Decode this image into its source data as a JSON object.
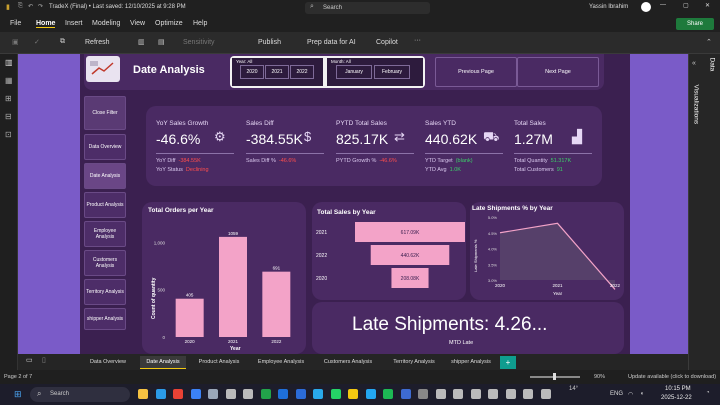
{
  "window": {
    "title": "TradeX (Final) • Last saved: 12/10/2025 at 9:28 PM",
    "search": "Search",
    "user": "Yassin Ibrahim"
  },
  "menu": {
    "items": [
      "File",
      "Home",
      "Insert",
      "Modeling",
      "View",
      "Optimize",
      "Help"
    ],
    "share": "Share"
  },
  "ribbon": {
    "refresh": "Refresh",
    "sensitivity": "Sensitivity",
    "publish": "Publish",
    "prep": "Prep data for AI",
    "copilot": "Copilot"
  },
  "report": {
    "title": "Date Analysis",
    "slicers": {
      "year_label": "Year: All",
      "years": [
        "2020",
        "2021",
        "2022"
      ],
      "month_label": "Month: All",
      "months": [
        "January",
        "February"
      ]
    },
    "prev_page": "Previous Page",
    "next_page": "Next Page",
    "nav": [
      "Close Filter",
      "Data Overview",
      "Date Analysis",
      "Product Analysis",
      "Employee Analysis",
      "Customers Analysis",
      "Territory Analysis",
      "shipper Analysis"
    ],
    "kpis": [
      {
        "title": "YoY Sales Growth",
        "value": "-46.6%",
        "lines": [
          {
            "label": "YoY Diff",
            "value": "-384.55K",
            "color": "red"
          },
          {
            "label": "YoY Status",
            "value": "Declining",
            "color": "red"
          }
        ]
      },
      {
        "title": "Sales Diff",
        "value": "-384.55K",
        "lines": [
          {
            "label": "Sales Diff %",
            "value": "-46.6%",
            "color": "red"
          }
        ]
      },
      {
        "title": "PYTD Total Sales",
        "value": "825.17K",
        "lines": [
          {
            "label": "PYTD Growth %",
            "value": "-46.6%",
            "color": "red"
          }
        ]
      },
      {
        "title": "Sales YTD",
        "value": "440.62K",
        "lines": [
          {
            "label": "YTD Target",
            "value": "(blank)",
            "color": "green"
          },
          {
            "label": "YTD Avg",
            "value": "1.0K",
            "color": "green"
          }
        ]
      },
      {
        "title": "Total Sales",
        "value": "1.27M",
        "lines": [
          {
            "label": "Total Quantity",
            "value": "51.317K",
            "color": "green"
          },
          {
            "label": "Total Customers",
            "value": "91",
            "color": "green"
          }
        ]
      }
    ],
    "late_shipments_text": "Late Shipments: 4.26...",
    "mtd_late": "MTD Late"
  },
  "chart_data": [
    {
      "type": "bar",
      "title": "Total Orders per Year",
      "categories": [
        "2020",
        "2021",
        "2022"
      ],
      "values": [
        405,
        1059,
        691
      ],
      "data_labels": [
        "405",
        "1059",
        "691"
      ],
      "xlabel": "Year",
      "ylabel": "Count of quantity",
      "yticks": [
        "0",
        "500",
        "1,000"
      ],
      "ylim": [
        0,
        1100
      ]
    },
    {
      "type": "bar",
      "orientation": "horizontal",
      "title": "Total Sales by Year",
      "categories": [
        "2021",
        "2022",
        "2020"
      ],
      "values": [
        617.09,
        440.62,
        208.08
      ],
      "data_labels": [
        "617.09K",
        "440.62K",
        "208.08K"
      ]
    },
    {
      "type": "area",
      "title": "Late Shipments % by Year",
      "categories": [
        "2020",
        "2021",
        "2022"
      ],
      "values": [
        4.5,
        4.8,
        2.7
      ],
      "xlabel": "Year",
      "ylabel": "Late Shipments %",
      "yticks": [
        "3.0%",
        "3.5%",
        "4.0%",
        "4.5%",
        "5.0%"
      ],
      "ylim": [
        3.0,
        5.0
      ]
    }
  ],
  "tabs": [
    "Data Overview",
    "Date Analysis",
    "Product Analysis",
    "Employee Analysis",
    "Customers Analysis",
    "Territory Analysis",
    "shipper Analysis"
  ],
  "side_pane": {
    "visualizations": "Visualizations",
    "data": "Data"
  },
  "status": {
    "page": "Page 2 of 7",
    "zoom": "90%",
    "update": "Update available (click to download)"
  },
  "taskbar": {
    "search": "Search",
    "time": "10:15 PM",
    "date": "2025-12-22",
    "lang": "ENG",
    "temp": "14°"
  }
}
